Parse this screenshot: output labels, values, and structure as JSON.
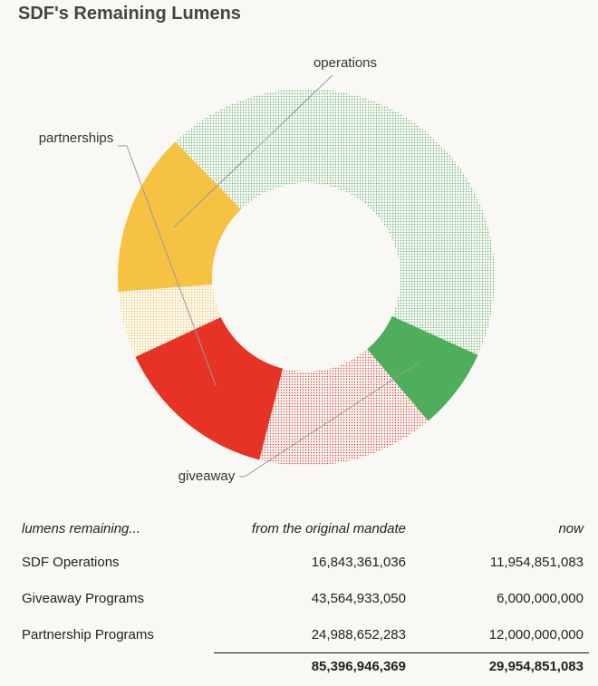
{
  "title": "SDF's Remaining Lumens",
  "chart_data": {
    "type": "donut",
    "title": "SDF's Remaining Lumens",
    "slices": [
      {
        "key": "operations_used",
        "label": "",
        "value": 4888509953,
        "color": "#f5c242",
        "style": "dotted"
      },
      {
        "key": "operations_remaining",
        "label": "operations",
        "value": 11954851083,
        "color": "#f5c242",
        "style": "solid"
      },
      {
        "key": "giveaway_used",
        "label": "",
        "value": 37564933050,
        "color": "#4fae5c",
        "style": "dotted"
      },
      {
        "key": "giveaway_remaining",
        "label": "giveaway",
        "value": 6000000000,
        "color": "#4fae5c",
        "style": "solid"
      },
      {
        "key": "partnerships_used",
        "label": "",
        "value": 12988652283,
        "color": "#e63325",
        "style": "dotted"
      },
      {
        "key": "partnerships_remaining",
        "label": "partnerships",
        "value": 12000000000,
        "color": "#e63325",
        "style": "solid"
      }
    ]
  },
  "table": {
    "headers": [
      "lumens remaining...",
      "from the original mandate",
      "now"
    ],
    "rows": [
      {
        "name": "SDF Operations",
        "original": "16,843,361,036",
        "now": "11,954,851,083"
      },
      {
        "name": "Giveaway Programs",
        "original": "43,564,933,050",
        "now": "6,000,000,000"
      },
      {
        "name": "Partnership Programs",
        "original": "24,988,652,283",
        "now": "12,000,000,000"
      }
    ],
    "totals": {
      "original": "85,396,946,369",
      "now": "29,954,851,083"
    }
  }
}
